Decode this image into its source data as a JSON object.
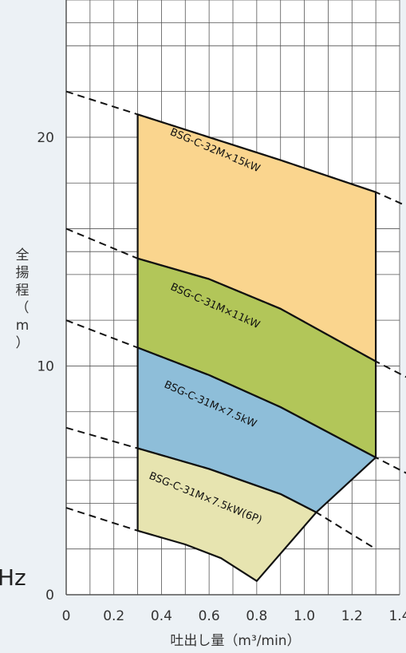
{
  "chart_data": {
    "type": "area",
    "xlim": [
      0,
      1.4
    ],
    "ylim": [
      0,
      26
    ],
    "x_ticks": [
      "0",
      "0.2",
      "0.4",
      "0.6",
      "0.8",
      "1.0",
      "1.2",
      "1.4"
    ],
    "y_ticks": [
      "0",
      "10",
      "20"
    ],
    "xlabel": "吐出し量（m³/min）",
    "ylabel": [
      "全",
      "揚",
      "程",
      "（",
      "m",
      "）"
    ],
    "grid": true,
    "left_edge_text": "Hz",
    "regions": [
      {
        "name": "BSG-C-32M×15kW",
        "color": "#fad58e",
        "top": [
          [
            0.3,
            21.0
          ],
          [
            0.6,
            20.0
          ],
          [
            0.9,
            19.0
          ],
          [
            1.3,
            17.6
          ]
        ],
        "bottom": [
          [
            0.3,
            14.7
          ],
          [
            0.6,
            13.8
          ],
          [
            0.9,
            12.5
          ],
          [
            1.3,
            10.2
          ]
        ]
      },
      {
        "name": "BSG-C-31M×11kW",
        "color": "#b2c659",
        "top": [
          [
            0.3,
            14.7
          ],
          [
            0.6,
            13.8
          ],
          [
            0.9,
            12.5
          ],
          [
            1.3,
            10.2
          ]
        ],
        "bottom": [
          [
            0.3,
            10.8
          ],
          [
            0.6,
            9.6
          ],
          [
            0.9,
            8.2
          ],
          [
            1.3,
            6.0
          ]
        ]
      },
      {
        "name": "BSG-C-31M×7.5kW",
        "color": "#8ebed9",
        "top": [
          [
            0.3,
            10.8
          ],
          [
            0.6,
            9.6
          ],
          [
            0.9,
            8.2
          ],
          [
            1.3,
            6.0
          ]
        ],
        "bottom": [
          [
            0.3,
            6.4
          ],
          [
            0.6,
            5.5
          ],
          [
            0.9,
            4.4
          ],
          [
            1.05,
            3.6
          ],
          [
            1.3,
            6.0
          ]
        ]
      },
      {
        "name": "BSG-C-31M×7.5kW(6P)",
        "color": "#e7e4b0",
        "top": [
          [
            0.3,
            6.4
          ],
          [
            0.6,
            5.5
          ],
          [
            0.9,
            4.4
          ],
          [
            1.05,
            3.6
          ]
        ],
        "bottom": [
          [
            0.3,
            2.8
          ],
          [
            0.5,
            2.2
          ],
          [
            0.65,
            1.6
          ],
          [
            0.8,
            0.6
          ],
          [
            1.05,
            3.6
          ]
        ]
      }
    ],
    "dashed_curves": [
      [
        [
          0.0,
          22.0
        ],
        [
          0.3,
          21.0
        ],
        [
          0.6,
          20.0
        ],
        [
          0.9,
          19.0
        ],
        [
          1.3,
          17.6
        ],
        [
          1.45,
          16.9
        ]
      ],
      [
        [
          0.0,
          16.0
        ],
        [
          0.3,
          14.7
        ],
        [
          0.6,
          13.8
        ],
        [
          0.9,
          12.5
        ],
        [
          1.3,
          10.2
        ],
        [
          1.45,
          9.4
        ]
      ],
      [
        [
          0.0,
          12.0
        ],
        [
          0.3,
          10.8
        ],
        [
          0.6,
          9.6
        ],
        [
          0.9,
          8.2
        ],
        [
          1.3,
          6.0
        ],
        [
          1.45,
          5.2
        ]
      ],
      [
        [
          0.0,
          7.3
        ],
        [
          0.3,
          6.4
        ],
        [
          0.6,
          5.5
        ],
        [
          0.9,
          4.4
        ],
        [
          1.05,
          3.6
        ],
        [
          1.3,
          2.0
        ]
      ],
      [
        [
          0.0,
          3.8
        ],
        [
          0.3,
          2.8
        ],
        [
          0.4,
          2.5
        ]
      ]
    ]
  }
}
